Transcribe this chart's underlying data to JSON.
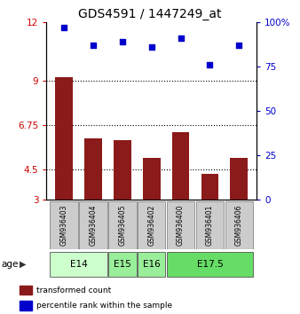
{
  "title": "GDS4591 / 1447249_at",
  "samples": [
    "GSM936403",
    "GSM936404",
    "GSM936405",
    "GSM936402",
    "GSM936400",
    "GSM936401",
    "GSM936406"
  ],
  "bar_values": [
    9.2,
    6.1,
    6.0,
    5.1,
    6.4,
    4.3,
    5.1
  ],
  "scatter_values": [
    97,
    87,
    89,
    86,
    91,
    76,
    87
  ],
  "ylim_left": [
    3,
    12
  ],
  "ylim_right": [
    0,
    100
  ],
  "yticks_left": [
    3,
    4.5,
    6.75,
    9,
    12
  ],
  "ytick_labels_left": [
    "3",
    "4.5",
    "6.75",
    "9",
    "12"
  ],
  "yticks_right": [
    0,
    25,
    50,
    75,
    100
  ],
  "ytick_labels_right": [
    "0",
    "25",
    "50",
    "75",
    "100%"
  ],
  "hlines": [
    4.5,
    6.75,
    9
  ],
  "bar_color": "#8B1A1A",
  "scatter_color": "#0000CC",
  "legend_bar_label": "transformed count",
  "legend_scatter_label": "percentile rank within the sample",
  "left_tick_color": "#CC0000",
  "right_tick_color": "#0000CC",
  "bar_width": 0.6,
  "title_fontsize": 10,
  "age_groups": [
    {
      "label": "E14",
      "indices": [
        0,
        1
      ],
      "color": "#CCFFCC"
    },
    {
      "label": "E15",
      "indices": [
        2
      ],
      "color": "#99EE99"
    },
    {
      "label": "E16",
      "indices": [
        3
      ],
      "color": "#99EE99"
    },
    {
      "label": "E17.5",
      "indices": [
        4,
        5,
        6
      ],
      "color": "#66DD66"
    }
  ]
}
